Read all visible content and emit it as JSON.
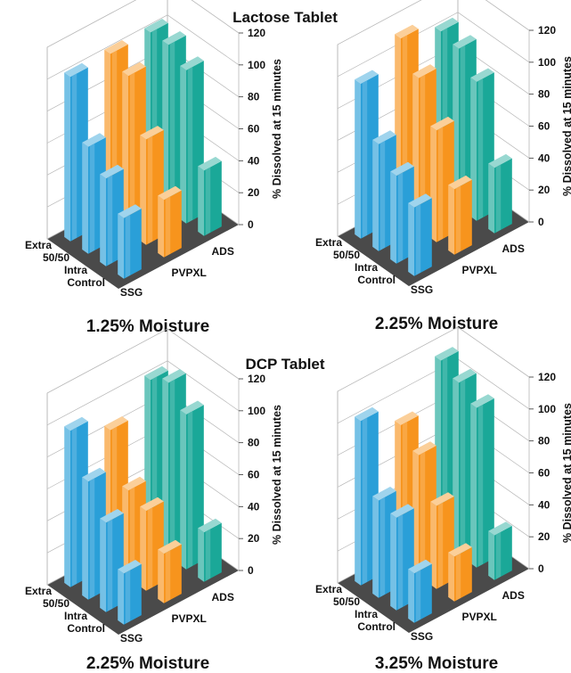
{
  "section_titles": [
    "Lactose Tablet",
    "DCP Tablet"
  ],
  "colors": {
    "SSG": "#2a9fd8",
    "PVPXL": "#f7941d",
    "ADS": "#1aa898",
    "floor": "#4a4a4a",
    "grid": "#b8b8b8"
  },
  "chart_data": [
    {
      "type": "bar",
      "subtitle": "1.25% Moisture",
      "section": "Lactose Tablet",
      "categories": [
        "Control",
        "Intra",
        "50/50",
        "Extra"
      ],
      "series": [
        {
          "name": "SSG",
          "values": [
            38,
            55,
            67,
            103
          ]
        },
        {
          "name": "PVPXL",
          "values": [
            36,
            66,
            98,
            104
          ]
        },
        {
          "name": "ADS",
          "values": [
            41,
            96,
            104,
            104
          ]
        }
      ],
      "ylabel": "% Dissolved at 15 minutes",
      "ylim": [
        0,
        120
      ],
      "yticks": [
        "0",
        "20",
        "40",
        "60",
        "80",
        "100",
        "120"
      ],
      "depth_labels": [
        "SSG",
        "PVPXL",
        "ADS"
      ]
    },
    {
      "type": "bar",
      "subtitle": "2.25% Moisture",
      "section": "Lactose Tablet",
      "categories": [
        "Control",
        "Intra",
        "50/50",
        "Extra"
      ],
      "series": [
        {
          "name": "SSG",
          "values": [
            43,
            55,
            67,
            97
          ]
        },
        {
          "name": "PVPXL",
          "values": [
            41,
            70,
            95,
            112
          ]
        },
        {
          "name": "ADS",
          "values": [
            41,
            87,
            100,
            103
          ]
        }
      ],
      "ylabel": "% Dissolved at 15 minutes",
      "ylim": [
        0,
        120
      ],
      "yticks": [
        "0",
        "20",
        "40",
        "60",
        "80",
        "100",
        "120"
      ],
      "depth_labels": [
        "SSG",
        "PVPXL",
        "ADS"
      ]
    },
    {
      "type": "bar",
      "subtitle": "2.25% Moisture",
      "section": "DCP Tablet",
      "categories": [
        "Control",
        "Intra",
        "50/50",
        "Extra"
      ],
      "series": [
        {
          "name": "SSG",
          "values": [
            32,
            56,
            74,
            98
          ]
        },
        {
          "name": "PVPXL",
          "values": [
            31,
            50,
            55,
            85
          ]
        },
        {
          "name": "ADS",
          "values": [
            31,
            97,
            109,
            103
          ]
        }
      ],
      "ylabel": "% Dissolved at 15 minutes",
      "ylim": [
        0,
        120
      ],
      "yticks": [
        "0",
        "20",
        "40",
        "60",
        "80",
        "100",
        "120"
      ],
      "depth_labels": [
        "SSG",
        "PVPXL",
        "ADS"
      ]
    },
    {
      "type": "bar",
      "subtitle": "3.25% Moisture",
      "section": "DCP Tablet",
      "categories": [
        "Control",
        "Intra",
        "50/50",
        "Extra"
      ],
      "series": [
        {
          "name": "SSG",
          "values": [
            31,
            58,
            61,
            103
          ]
        },
        {
          "name": "PVPXL",
          "values": [
            28,
            52,
            76,
            87
          ]
        },
        {
          "name": "ADS",
          "values": [
            28,
            100,
            108,
            114
          ]
        }
      ],
      "ylabel": "% Dissolved at 15 minutes",
      "ylim": [
        0,
        120
      ],
      "yticks": [
        "0",
        "20",
        "40",
        "60",
        "80",
        "100",
        "120"
      ],
      "depth_labels": [
        "SSG",
        "PVPXL",
        "ADS"
      ]
    }
  ]
}
